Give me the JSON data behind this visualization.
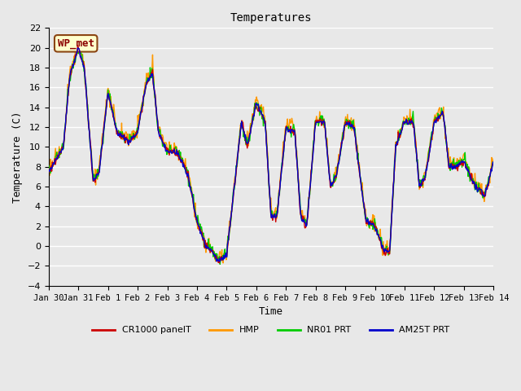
{
  "title": "Temperatures",
  "xlabel": "Time",
  "ylabel": "Temperature (C)",
  "ylim": [
    -4,
    22
  ],
  "yticks": [
    -4,
    -2,
    0,
    2,
    4,
    6,
    8,
    10,
    12,
    14,
    16,
    18,
    20,
    22
  ],
  "background_color": "#e8e8e8",
  "plot_bg_color": "#e8e8e8",
  "grid_color": "#ffffff",
  "annotation_text": "WP_met",
  "annotation_bg": "#ffffcc",
  "annotation_border": "#8b4513",
  "annotation_text_color": "#8b0000",
  "line_colors": {
    "CR1000 panelT": "#cc0000",
    "HMP": "#ff9900",
    "NR01 PRT": "#00cc00",
    "AM25T PRT": "#0000cc"
  },
  "legend_labels": [
    "CR1000 panelT",
    "HMP",
    "NR01 PRT",
    "AM25T PRT"
  ],
  "x_tick_labels": [
    "Jan 30",
    "Jan 31",
    "Feb 1",
    "Feb 2",
    "Feb 3",
    "Feb 4",
    "Feb 5",
    "Feb 6",
    "Feb 7",
    "Feb 8",
    "Feb 9",
    "Feb 10",
    "Feb 11",
    "Feb 12",
    "Feb 13",
    "Feb 14"
  ],
  "font_family": "monospace"
}
